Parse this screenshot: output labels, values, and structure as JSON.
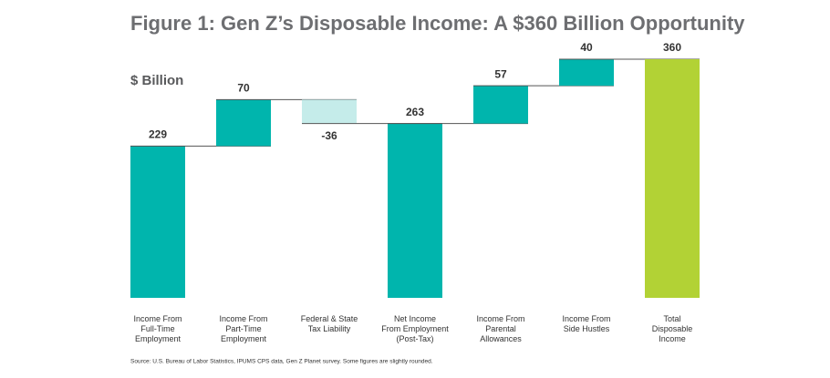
{
  "chart_data": {
    "type": "waterfall",
    "title": "Figure 1: Gen Z’s Disposable Income: A $360 Billion Opportunity",
    "y_label": "$ Billion",
    "categories": [
      "Income From\nFull-Time\nEmployment",
      "Income From\nPart-Time\nEmployment",
      "Federal & State\nTax Liability",
      "Net Income\nFrom Employment\n(Post-Tax)",
      "Income From\nParental\nAllowances",
      "Income From\nSide Hustles",
      "Total\nDisposable\nIncome"
    ],
    "values": [
      229,
      70,
      -36,
      263,
      57,
      40,
      360
    ],
    "measure": [
      "relative",
      "relative",
      "relative",
      "total",
      "relative",
      "relative",
      "total"
    ],
    "colors": [
      "#00b5ad",
      "#00b5ad",
      "#c5ecea",
      "#00b5ad",
      "#00b5ad",
      "#00b5ad",
      "#b2d235"
    ],
    "source": "Source: U.S. Bureau of Labor Statistics, IPUMS CPS data, Gen Z Planet survey. Some figures are slightly rounded."
  }
}
